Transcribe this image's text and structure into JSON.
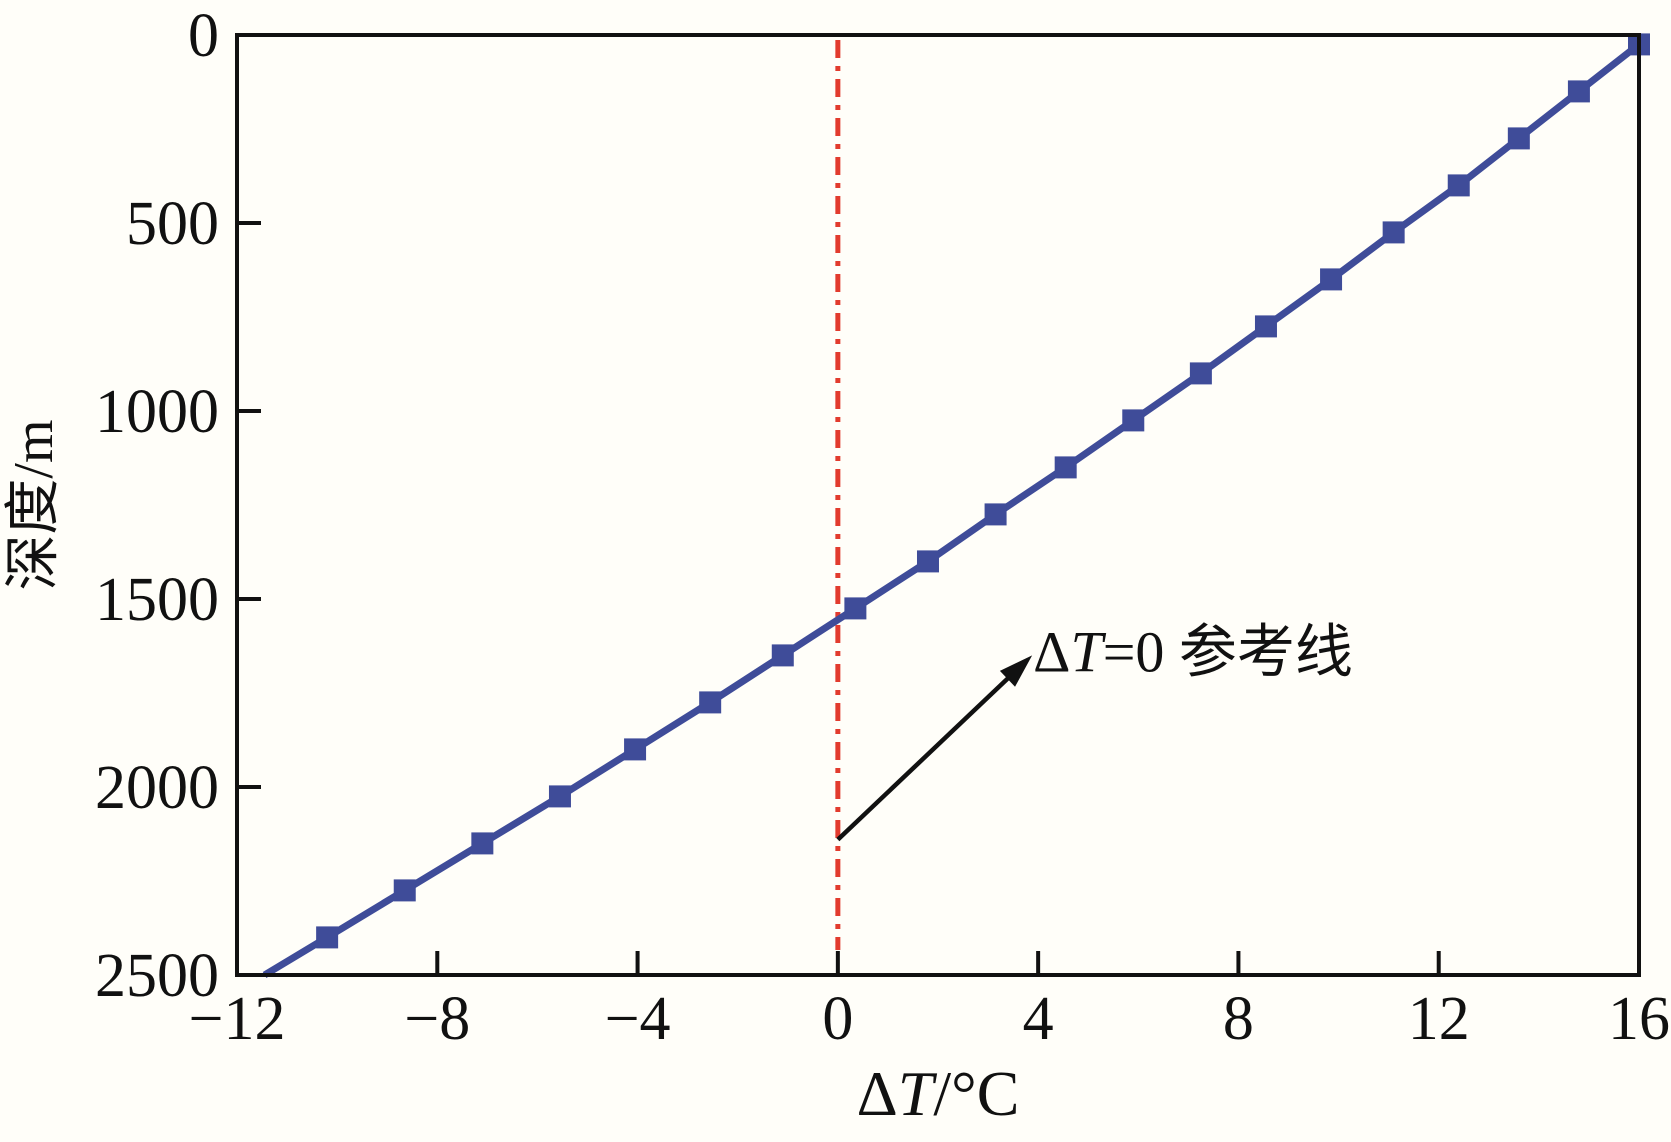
{
  "figure": {
    "background": "#FFFEF9",
    "axis_color": "#111111",
    "text_color": "#111111"
  },
  "chart_data": {
    "type": "line",
    "title": "",
    "xlabel": "ΔT/°C",
    "xlabel_parts": [
      {
        "text": "Δ",
        "italic": false
      },
      {
        "text": "T",
        "italic": true
      },
      {
        "text": "/°C",
        "italic": false
      }
    ],
    "ylabel": "深度/m",
    "xlim": [
      -12,
      16
    ],
    "ylim": [
      0,
      2500
    ],
    "y_inverted": true,
    "x_ticks": [
      -12,
      -8,
      -4,
      0,
      4,
      8,
      12,
      16
    ],
    "y_ticks": [
      0,
      500,
      1000,
      1500,
      2000,
      2500
    ],
    "grid": false,
    "legend": null,
    "series": [
      {
        "name": "series-1",
        "color": "#3F4C99",
        "marker": "square",
        "marker_size": 22,
        "line_width": 7,
        "line_start": [
          -11.45,
          2500
        ],
        "points": [
          [
            -10.2,
            2400
          ],
          [
            -8.65,
            2275
          ],
          [
            -7.1,
            2150
          ],
          [
            -5.55,
            2025
          ],
          [
            -4.05,
            1900
          ],
          [
            -2.55,
            1775
          ],
          [
            -1.1,
            1650
          ],
          [
            0.35,
            1525
          ],
          [
            1.8,
            1400
          ],
          [
            3.15,
            1275
          ],
          [
            4.55,
            1150
          ],
          [
            5.9,
            1025
          ],
          [
            7.25,
            900
          ],
          [
            8.55,
            775
          ],
          [
            9.85,
            650
          ],
          [
            11.1,
            525
          ],
          [
            12.4,
            400
          ],
          [
            13.6,
            275
          ],
          [
            14.8,
            150
          ],
          [
            16.0,
            25
          ]
        ]
      }
    ],
    "reference_line": {
      "x": 0,
      "color": "#E23B2E",
      "style": "dash-dot",
      "width": 5
    },
    "annotation": {
      "text": "ΔT=0 参考线",
      "text_parts": [
        {
          "text": "Δ",
          "italic": false
        },
        {
          "text": "T",
          "italic": true
        },
        {
          "text": "=0 参考线",
          "italic": false
        }
      ],
      "text_xy": [
        3.9,
        1600
      ],
      "arrow_from": [
        0.0,
        2140
      ],
      "arrow_to": [
        3.88,
        1650
      ],
      "arrow_color": "#111111"
    }
  }
}
